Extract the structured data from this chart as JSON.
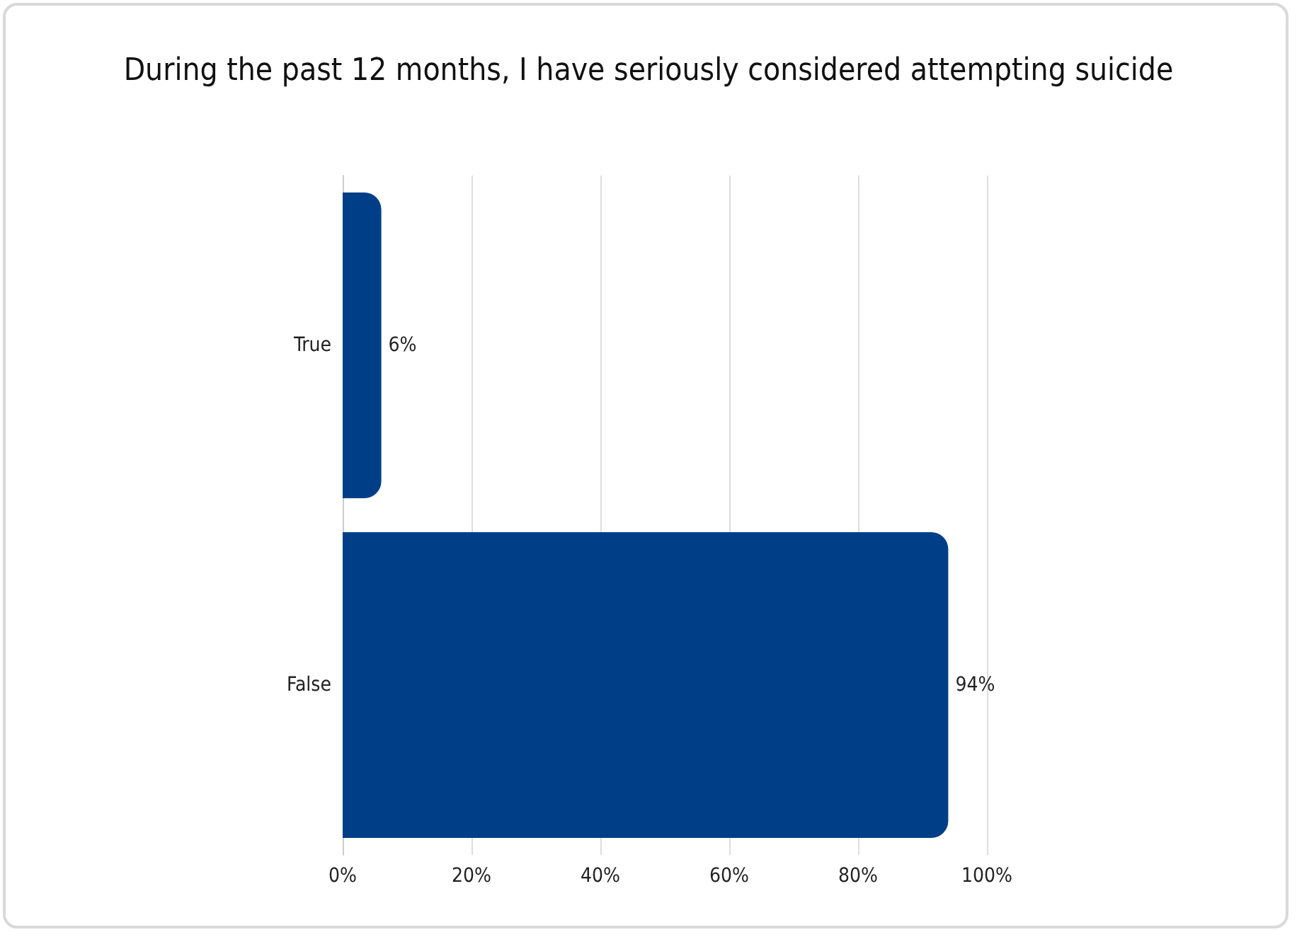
{
  "chart_data": {
    "type": "bar",
    "orientation": "horizontal",
    "title": "During the past 12 months, I have seriously considered attempting suicide",
    "categories": [
      "True",
      "False"
    ],
    "values": [
      6,
      94
    ],
    "color": "#003f87",
    "value_labels": [
      "6%",
      "94%"
    ],
    "xlim": [
      0,
      100
    ],
    "xticks": [
      {
        "value": 0,
        "label": "0%"
      },
      {
        "value": 20,
        "label": "20%"
      },
      {
        "value": 40,
        "label": "40%"
      },
      {
        "value": 60,
        "label": "60%"
      },
      {
        "value": 80,
        "label": "80%"
      },
      {
        "value": 100,
        "label": "100%"
      }
    ],
    "grid": "x"
  }
}
